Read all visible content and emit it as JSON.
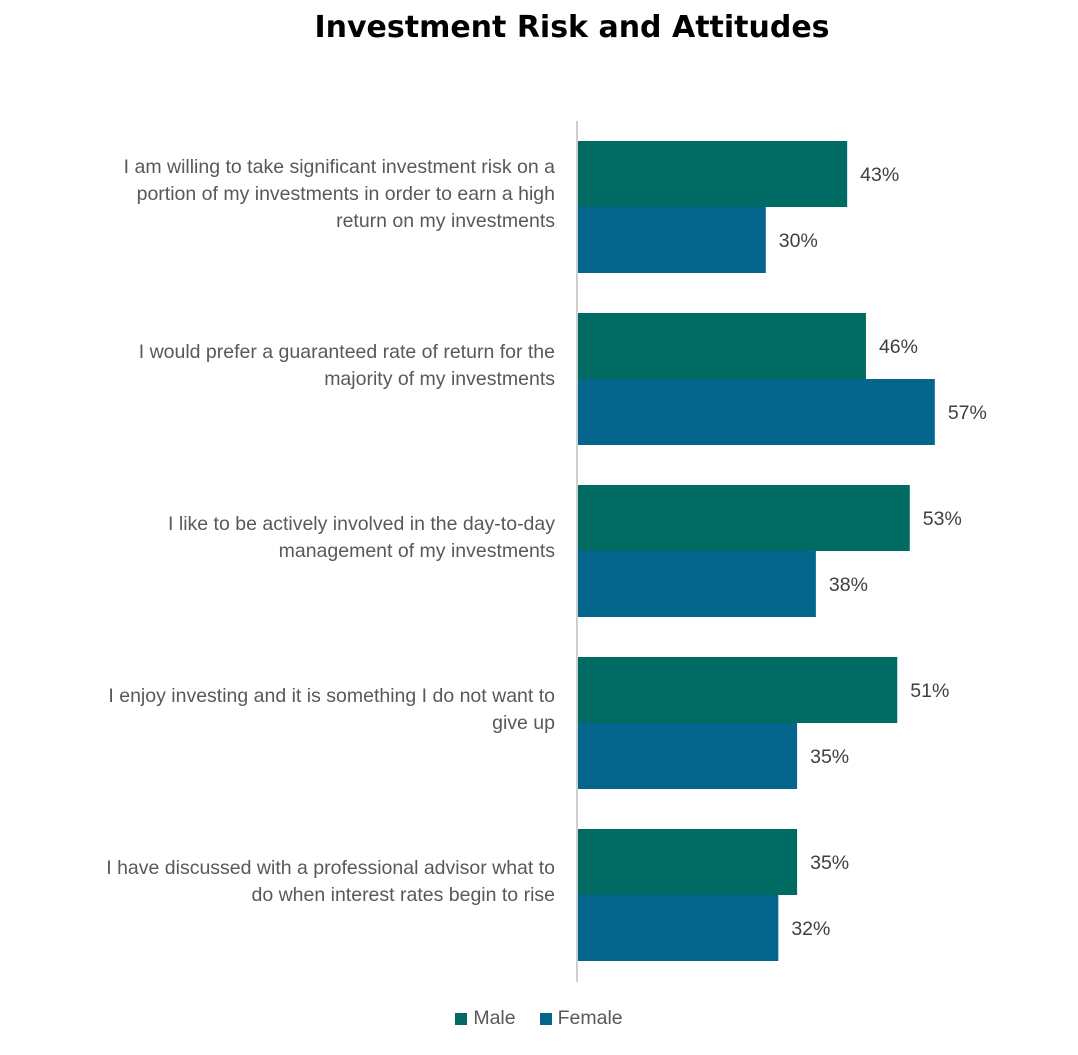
{
  "chart_data": {
    "type": "bar",
    "orientation": "horizontal",
    "title": "Investment Risk and Attitudes",
    "categories": [
      "I am willing to take significant investment risk on a portion of my investments in order to earn a high return on my investments",
      "I would prefer a guaranteed rate of return for the majority of my investments",
      "I like to be actively involved in the day-to-day management of my investments",
      "I enjoy investing and it is something I do not want to give up",
      "I have discussed with a professional advisor what to do when interest rates begin to rise"
    ],
    "category_lines": [
      [
        "I am willing to take significant investment risk on a",
        "portion of my investments in order to earn a high",
        "return on my investments"
      ],
      [
        "I would prefer a guaranteed rate of return for the",
        "majority of my investments"
      ],
      [
        "I like to be actively involved in the day-to-day",
        "management of my investments"
      ],
      [
        "I enjoy investing and it is something I do not want to",
        "give up"
      ],
      [
        "I have discussed with a professional advisor what to",
        "do when interest rates begin to rise"
      ]
    ],
    "series": [
      {
        "name": "Male",
        "color": "#006B63",
        "values": [
          43,
          46,
          53,
          51,
          35
        ]
      },
      {
        "name": "Female",
        "color": "#05668D",
        "values": [
          30,
          57,
          38,
          35,
          32
        ]
      }
    ],
    "value_suffix": "%",
    "xlim": [
      0,
      100
    ],
    "grid": false,
    "legend_position": "bottom"
  }
}
